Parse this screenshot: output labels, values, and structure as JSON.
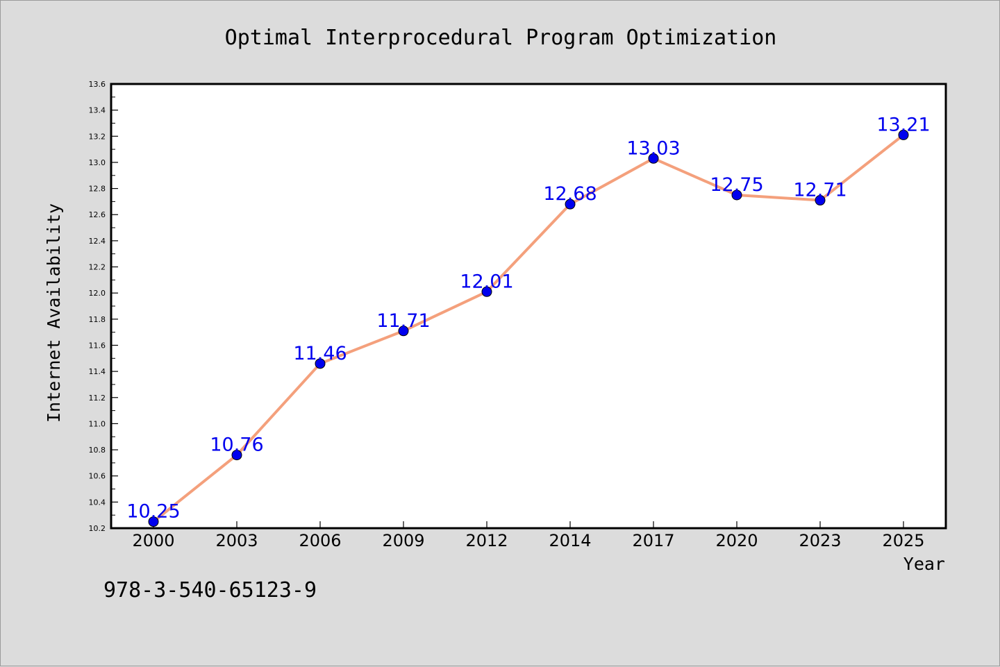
{
  "chart_data": {
    "type": "line",
    "title": "Optimal Interprocedural Program Optimization",
    "xlabel": "Year",
    "ylabel": "Internet Availability",
    "categories": [
      "2000",
      "2003",
      "2006",
      "2009",
      "2012",
      "2014",
      "2017",
      "2020",
      "2023",
      "2025"
    ],
    "series": [
      {
        "values": [
          10.25,
          10.76,
          11.46,
          11.71,
          12.01,
          12.68,
          13.03,
          12.75,
          12.71,
          13.21
        ]
      }
    ],
    "data_labels": [
      "10.25",
      "10.76",
      "11.46",
      "11.71",
      "12.01",
      "12.68",
      "13.03",
      "12.75",
      "12.71",
      "13.21"
    ],
    "ylim": [
      10.2,
      13.6
    ],
    "yticks": [
      "10.2",
      "10.4",
      "10.6",
      "10.8",
      "11.0",
      "11.2",
      "11.4",
      "11.6",
      "11.8",
      "12.0",
      "12.2",
      "12.4",
      "12.6",
      "12.8",
      "13.0",
      "13.2",
      "13.4",
      "13.6"
    ],
    "grid": false,
    "legend": "none",
    "colors": {
      "line": "#f4a07c",
      "marker": "#0000ee",
      "label": "#0000ee"
    }
  },
  "footer": {
    "code": "978-3-540-65123-9"
  }
}
